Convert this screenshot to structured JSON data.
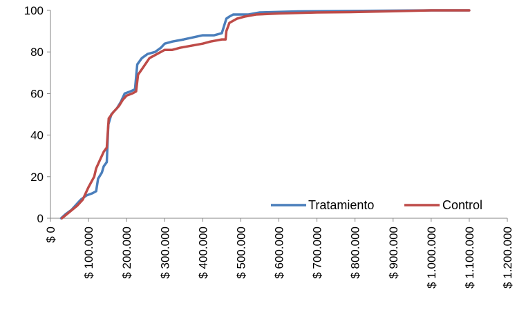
{
  "chart_data": {
    "type": "line",
    "title": "",
    "xlabel": "",
    "ylabel": "",
    "xlim": [
      0,
      1200000
    ],
    "ylim": [
      0,
      100
    ],
    "y_ticks": [
      0,
      20,
      40,
      60,
      80,
      100
    ],
    "y_tick_labels": [
      "0",
      "20",
      "40",
      "60",
      "80",
      "100"
    ],
    "x_ticks": [
      0,
      100000,
      200000,
      300000,
      400000,
      500000,
      600000,
      700000,
      800000,
      900000,
      1000000,
      1100000,
      1200000
    ],
    "x_tick_labels": [
      "$ 0",
      "$ 100.000",
      "$ 200.000",
      "$ 300.000",
      "$ 400.000",
      "$ 500.000",
      "$ 600.000",
      "$ 700.000",
      "$ 800.000",
      "$ 900.000",
      "$ 1.000.000",
      "$ 1.100.000",
      "$ 1.200.000"
    ],
    "grid": false,
    "legend_position": "bottom-right",
    "series": [
      {
        "name": "Tratamiento",
        "color": "#4A7EBB",
        "points": [
          [
            28000,
            0
          ],
          [
            40000,
            2
          ],
          [
            55000,
            4
          ],
          [
            70000,
            7
          ],
          [
            80000,
            9
          ],
          [
            95000,
            11
          ],
          [
            110000,
            12
          ],
          [
            120000,
            13
          ],
          [
            125000,
            19
          ],
          [
            135000,
            22
          ],
          [
            140000,
            25
          ],
          [
            148000,
            27
          ],
          [
            152000,
            45
          ],
          [
            160000,
            50
          ],
          [
            175000,
            53
          ],
          [
            185000,
            56
          ],
          [
            195000,
            60
          ],
          [
            210000,
            61
          ],
          [
            222000,
            62
          ],
          [
            228000,
            74
          ],
          [
            240000,
            77
          ],
          [
            255000,
            79
          ],
          [
            275000,
            80
          ],
          [
            290000,
            82
          ],
          [
            300000,
            84
          ],
          [
            320000,
            85
          ],
          [
            350000,
            86
          ],
          [
            375000,
            87
          ],
          [
            400000,
            88
          ],
          [
            430000,
            88
          ],
          [
            450000,
            89
          ],
          [
            462000,
            96
          ],
          [
            470000,
            97
          ],
          [
            480000,
            98
          ],
          [
            520000,
            98
          ],
          [
            550000,
            99
          ],
          [
            650000,
            99.5
          ],
          [
            1000000,
            100
          ],
          [
            1100000,
            100
          ]
        ]
      },
      {
        "name": "Control",
        "color": "#BE4B48",
        "points": [
          [
            30000,
            0
          ],
          [
            50000,
            3
          ],
          [
            70000,
            6
          ],
          [
            85000,
            9
          ],
          [
            100000,
            15
          ],
          [
            115000,
            20
          ],
          [
            120000,
            24
          ],
          [
            130000,
            28
          ],
          [
            140000,
            32
          ],
          [
            148000,
            34
          ],
          [
            153000,
            48
          ],
          [
            165000,
            51
          ],
          [
            180000,
            54
          ],
          [
            190000,
            57
          ],
          [
            200000,
            59
          ],
          [
            215000,
            60
          ],
          [
            225000,
            61
          ],
          [
            230000,
            69
          ],
          [
            245000,
            73
          ],
          [
            260000,
            77
          ],
          [
            280000,
            79
          ],
          [
            300000,
            81
          ],
          [
            320000,
            81
          ],
          [
            340000,
            82
          ],
          [
            370000,
            83
          ],
          [
            400000,
            84
          ],
          [
            420000,
            85
          ],
          [
            450000,
            86
          ],
          [
            460000,
            86
          ],
          [
            462000,
            90
          ],
          [
            470000,
            94
          ],
          [
            490000,
            96
          ],
          [
            510000,
            97
          ],
          [
            540000,
            98
          ],
          [
            600000,
            98.5
          ],
          [
            700000,
            99
          ],
          [
            800000,
            99.2
          ],
          [
            900000,
            99.6
          ],
          [
            1000000,
            100
          ],
          [
            1100000,
            100
          ]
        ]
      }
    ]
  }
}
